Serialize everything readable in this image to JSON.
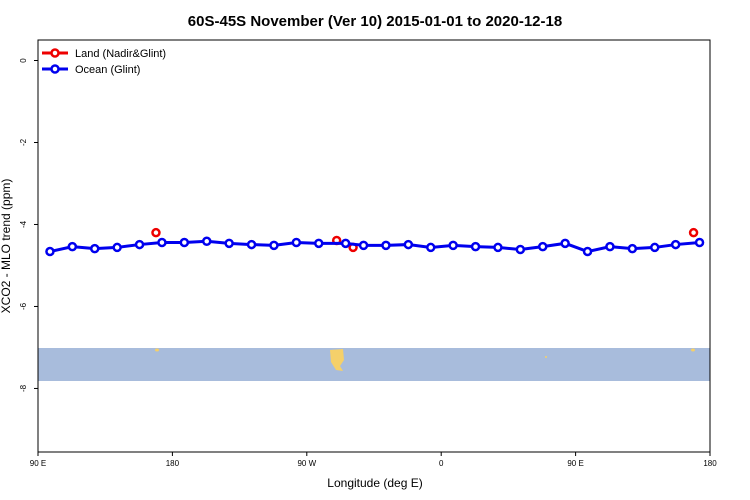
{
  "chart_data": {
    "type": "line",
    "title": "60S-45S November (Ver 10)   2015-01-01 to 2020-12-18",
    "x_label": "Longitude (deg E)",
    "y_label": "XCO2 - MLO trend (ppm)",
    "xlim": [
      90,
      540
    ],
    "xticks": [
      {
        "value": 90,
        "label": "90 E"
      },
      {
        "value": 180,
        "label": "180"
      },
      {
        "value": 270,
        "label": "90 W"
      },
      {
        "value": 360,
        "label": "0"
      },
      {
        "value": 450,
        "label": "90 E"
      },
      {
        "value": 540,
        "label": "180"
      }
    ],
    "ylim": [
      -9.55,
      0.5
    ],
    "yticks": [
      0,
      -2,
      -4,
      -6,
      -8
    ],
    "legend": "top-left",
    "series": [
      {
        "name": "Land (Nadir&Glint)",
        "color": "#ee0000",
        "connected": false,
        "x": [
          169,
          290,
          301,
          529
        ],
        "values": [
          -4.2,
          -4.39,
          -4.56,
          -4.2
        ]
      },
      {
        "name": "Ocean (Glint)",
        "color": "#0000ee",
        "connected": true,
        "x": [
          98,
          113,
          128,
          143,
          158,
          173,
          188,
          203,
          218,
          233,
          248,
          263,
          278,
          296,
          308,
          323,
          338,
          353,
          368,
          383,
          398,
          413,
          428,
          443,
          458,
          473,
          488,
          503,
          517,
          533
        ],
        "values": [
          -4.66,
          -4.54,
          -4.59,
          -4.56,
          -4.49,
          -4.44,
          -4.44,
          -4.41,
          -4.46,
          -4.49,
          -4.51,
          -4.44,
          -4.46,
          -4.46,
          -4.51,
          -4.51,
          -4.49,
          -4.56,
          -4.51,
          -4.54,
          -4.56,
          -4.61,
          -4.54,
          -4.46,
          -4.66,
          -4.54,
          -4.59,
          -4.56,
          -4.49,
          -4.44
        ]
      }
    ]
  }
}
